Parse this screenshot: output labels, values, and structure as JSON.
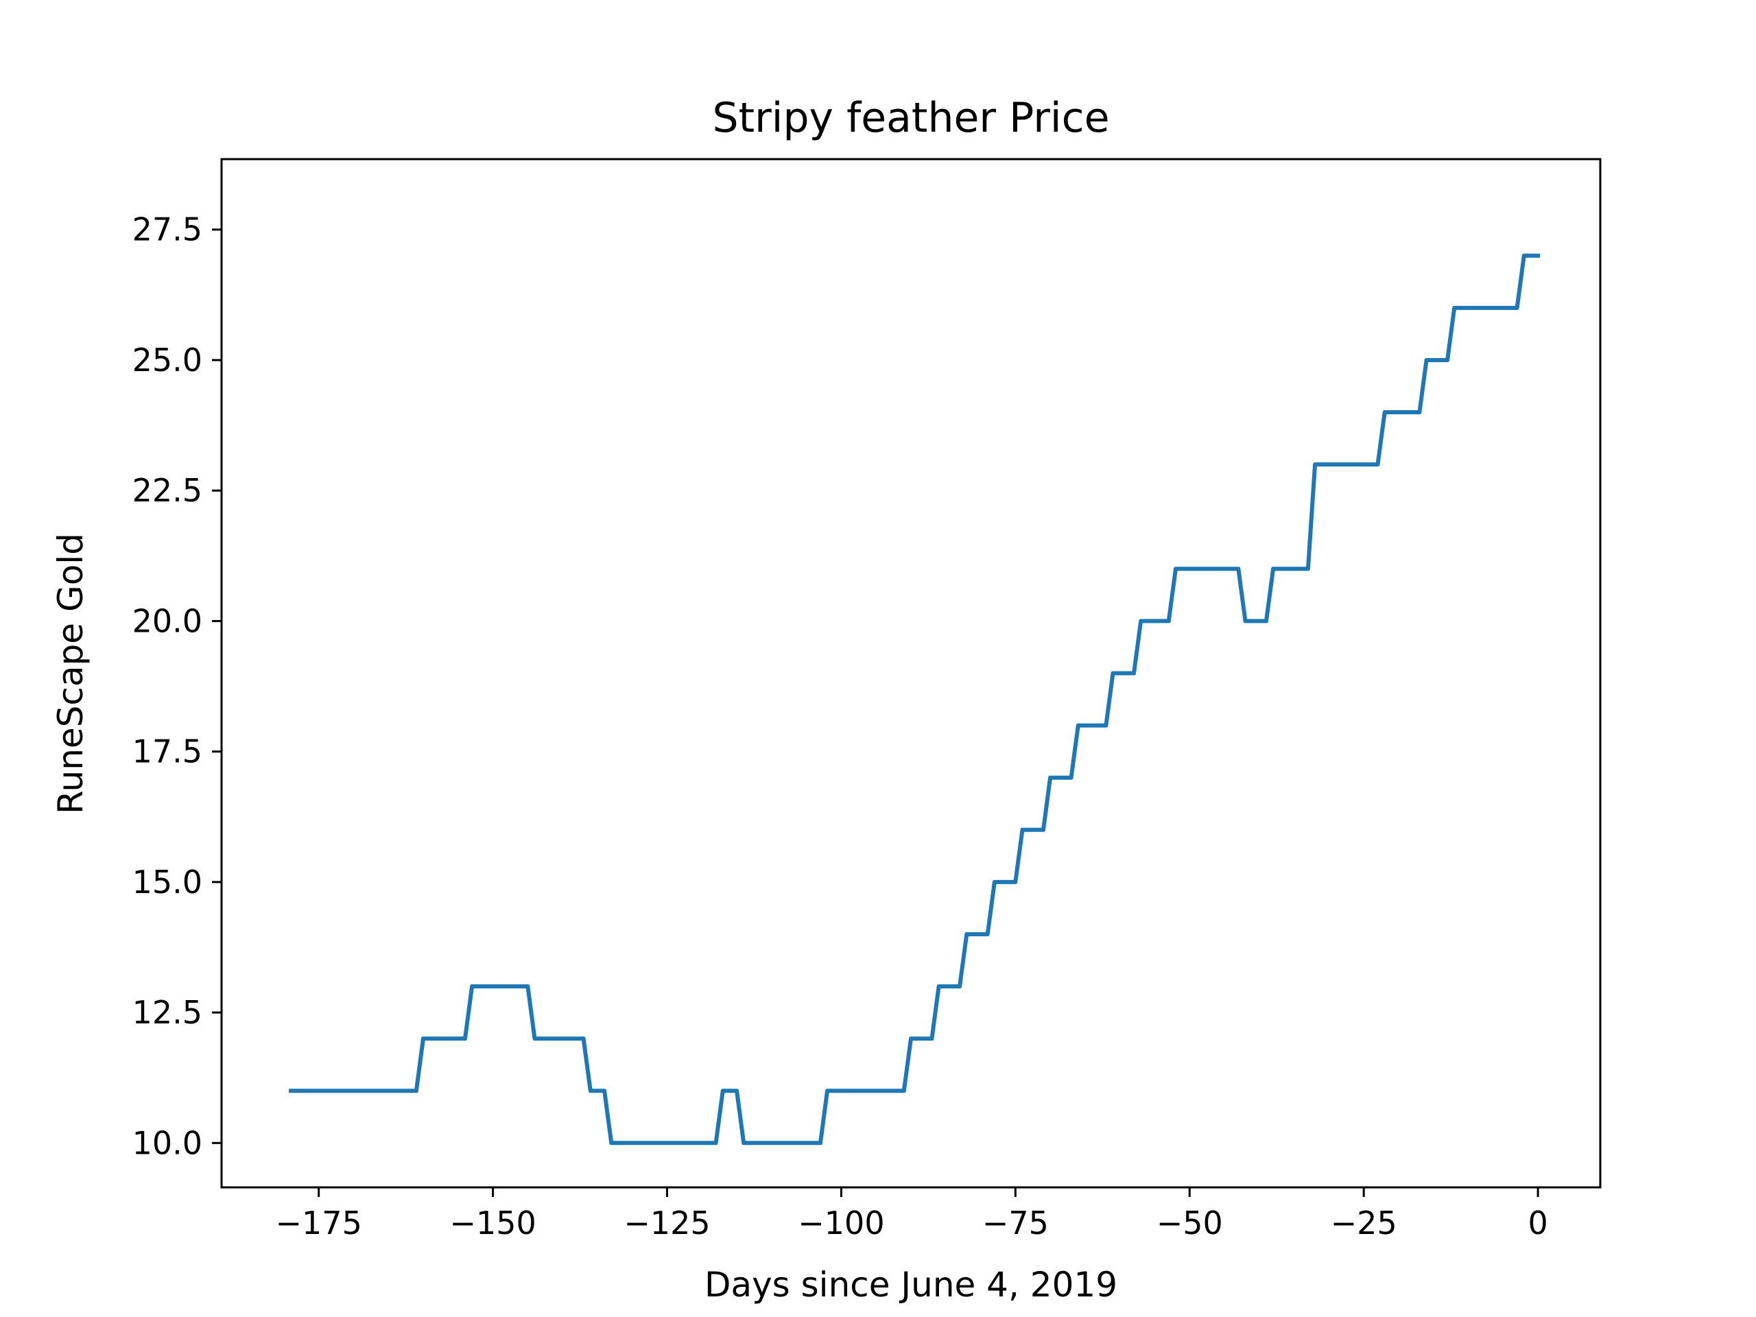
{
  "chart_data": {
    "type": "line",
    "title": "Stripy feather Price",
    "xlabel": "Days since June 4, 2019",
    "ylabel": "RuneScape Gold",
    "xlim": [
      -188.95,
      8.95
    ],
    "ylim": [
      9.15,
      28.85
    ],
    "xticks": [
      -175,
      -150,
      -125,
      -100,
      -75,
      -50,
      -25,
      0
    ],
    "xtick_labels": [
      "−175",
      "−150",
      "−125",
      "−100",
      "−75",
      "−50",
      "−25",
      "0"
    ],
    "yticks": [
      10.0,
      12.5,
      15.0,
      17.5,
      20.0,
      22.5,
      25.0,
      27.5
    ],
    "ytick_labels": [
      "10.0",
      "12.5",
      "15.0",
      "17.5",
      "20.0",
      "22.5",
      "25.0",
      "27.5"
    ],
    "grid": false,
    "series": [
      {
        "color": "#1f77b4",
        "x": [
          -179,
          -161,
          -160,
          -154,
          -153,
          -145,
          -144,
          -137,
          -136,
          -134,
          -133,
          -118,
          -117,
          -115,
          -114,
          -103,
          -102,
          -91,
          -90,
          -87,
          -86,
          -83,
          -82,
          -79,
          -78,
          -75,
          -74,
          -71,
          -70,
          -67,
          -66,
          -62,
          -61,
          -58,
          -57,
          -53,
          -52,
          -43,
          -42,
          -39,
          -38,
          -33,
          -32,
          -23,
          -22,
          -17,
          -16,
          -13,
          -12,
          -3,
          -2,
          0
        ],
        "y": [
          11,
          11,
          12,
          12,
          13,
          13,
          12,
          12,
          11,
          11,
          10,
          10,
          11,
          11,
          10,
          10,
          11,
          11,
          12,
          12,
          13,
          13,
          14,
          14,
          15,
          15,
          16,
          16,
          17,
          17,
          18,
          18,
          19,
          19,
          20,
          20,
          21,
          21,
          20,
          20,
          21,
          21,
          23,
          23,
          24,
          24,
          25,
          25,
          26,
          26,
          27,
          27
        ]
      }
    ]
  }
}
